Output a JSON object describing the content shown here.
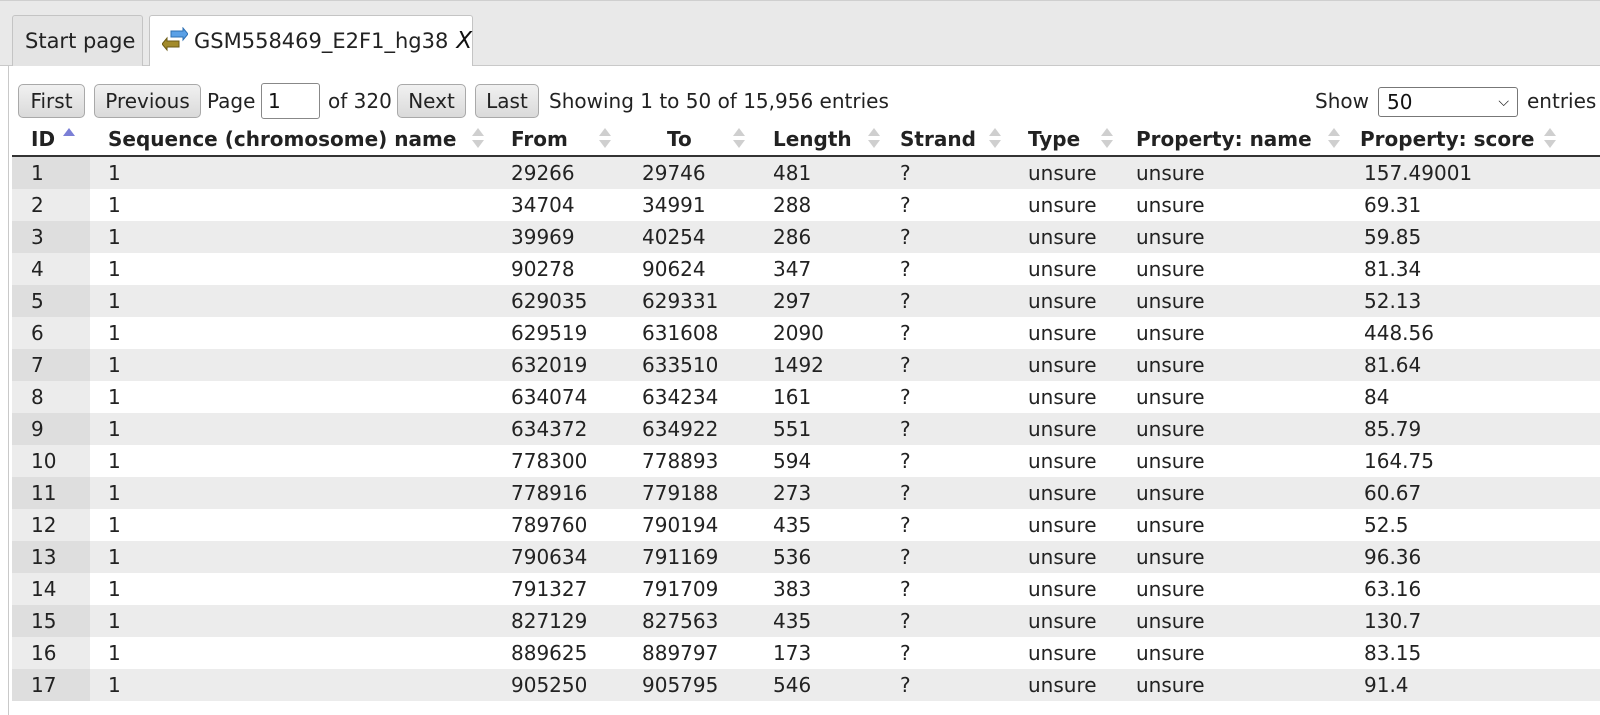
{
  "tabs": [
    {
      "label": "Start page"
    },
    {
      "label": "GSM558469_E2F1_hg38",
      "close": "X"
    }
  ],
  "pager": {
    "first": "First",
    "previous": "Previous",
    "page_label": "Page",
    "page_value": "1",
    "of_label": "of 320",
    "next": "Next",
    "last": "Last",
    "showing": "Showing 1 to 50 of 15,956 entries",
    "show_label": "Show",
    "show_value": "50",
    "entries_label": "entries"
  },
  "table": {
    "columns": [
      "ID",
      "Sequence (chromosome) name",
      "From",
      "To",
      "Length",
      "Strand",
      "Type",
      "Property: name",
      "Property: score"
    ],
    "rows": [
      [
        "1",
        "1",
        "29266",
        "29746",
        "481",
        "?",
        "unsure",
        "unsure",
        "157.49001"
      ],
      [
        "2",
        "1",
        "34704",
        "34991",
        "288",
        "?",
        "unsure",
        "unsure",
        "69.31"
      ],
      [
        "3",
        "1",
        "39969",
        "40254",
        "286",
        "?",
        "unsure",
        "unsure",
        "59.85"
      ],
      [
        "4",
        "1",
        "90278",
        "90624",
        "347",
        "?",
        "unsure",
        "unsure",
        "81.34"
      ],
      [
        "5",
        "1",
        "629035",
        "629331",
        "297",
        "?",
        "unsure",
        "unsure",
        "52.13"
      ],
      [
        "6",
        "1",
        "629519",
        "631608",
        "2090",
        "?",
        "unsure",
        "unsure",
        "448.56"
      ],
      [
        "7",
        "1",
        "632019",
        "633510",
        "1492",
        "?",
        "unsure",
        "unsure",
        "81.64"
      ],
      [
        "8",
        "1",
        "634074",
        "634234",
        "161",
        "?",
        "unsure",
        "unsure",
        "84"
      ],
      [
        "9",
        "1",
        "634372",
        "634922",
        "551",
        "?",
        "unsure",
        "unsure",
        "85.79"
      ],
      [
        "10",
        "1",
        "778300",
        "778893",
        "594",
        "?",
        "unsure",
        "unsure",
        "164.75"
      ],
      [
        "11",
        "1",
        "778916",
        "779188",
        "273",
        "?",
        "unsure",
        "unsure",
        "60.67"
      ],
      [
        "12",
        "1",
        "789760",
        "790194",
        "435",
        "?",
        "unsure",
        "unsure",
        "52.5"
      ],
      [
        "13",
        "1",
        "790634",
        "791169",
        "536",
        "?",
        "unsure",
        "unsure",
        "96.36"
      ],
      [
        "14",
        "1",
        "791327",
        "791709",
        "383",
        "?",
        "unsure",
        "unsure",
        "63.16"
      ],
      [
        "15",
        "1",
        "827129",
        "827563",
        "435",
        "?",
        "unsure",
        "unsure",
        "130.7"
      ],
      [
        "16",
        "1",
        "889625",
        "889797",
        "173",
        "?",
        "unsure",
        "unsure",
        "83.15"
      ],
      [
        "17",
        "1",
        "905250",
        "905795",
        "546",
        "?",
        "unsure",
        "unsure",
        "91.4"
      ]
    ]
  },
  "colors": {
    "sort_active": "#7b7fd6",
    "row_odd": "#ececec",
    "id_col": "#dedede"
  },
  "icons": {
    "tab_doc": "track-arrows-icon",
    "sort": "sort-arrows-icon"
  }
}
